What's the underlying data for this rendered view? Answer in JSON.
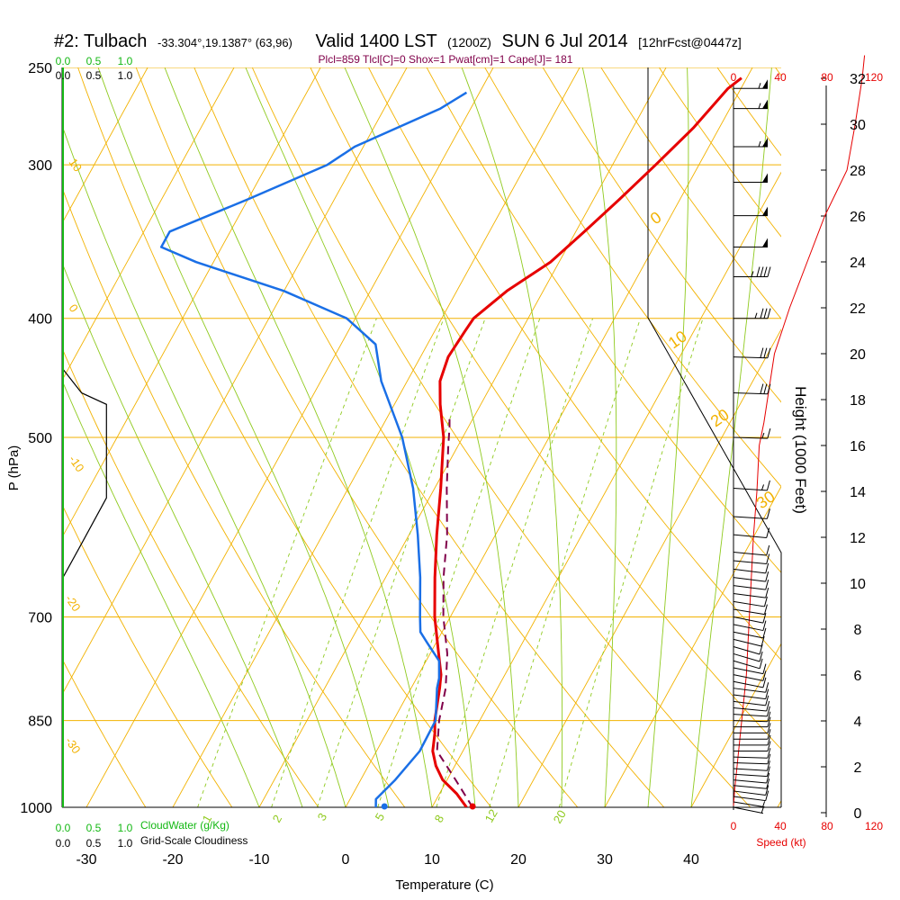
{
  "header": {
    "title_main": "#2: Tulbach",
    "title_coords": "-33.304°,19.1387° (63,96)",
    "title_valid": "Valid 1400 LST",
    "title_z": "(1200Z)",
    "title_date": "SUN 6 Jul 2014",
    "title_fcst": "[12hrFcst@0447z]",
    "subtitle": "Plcl=859 Tlcl[C]=0 Shox=1 Pwat[cm]=1 Cape[J]= 181"
  },
  "labels": {
    "ylabel": "P (hPa)",
    "xlabel": "Temperature (C)",
    "height_label": "Height (1000 Feet)",
    "speed_label": "Speed (kt)",
    "cloudwater_label": "CloudWater (g/Kg)",
    "cloudiness_label": "Grid-Scale Cloudiness"
  },
  "colors": {
    "isobar": "#f2b200",
    "dry_adiabat": "#f2b200",
    "moist_adiabat": "#8fca1e",
    "mixing_ratio": "#8fca1e",
    "temperature": "#e60000",
    "dewpoint": "#1a6fe6",
    "parcel": "#80004a",
    "cloudwater": "#14b814",
    "wind_speed": "#e60000",
    "text": "#000000"
  },
  "chart_data": {
    "type": "line",
    "title": "#2: Tulbach -33.304°,19.1387° (63,96) Valid 1400 LST (1200Z) SUN 6 Jul 2014 [12hrFcst@0447z]",
    "subtitle": "Plcl=859 Tlcl[C]=0 Shox=1 Pwat[cm]=1 Cape[J]= 181",
    "xlabel": "Temperature (C)",
    "ylabel": "P (hPa)",
    "xlim": [
      -34,
      36
    ],
    "ylim": [
      1000,
      250
    ],
    "x_ticks": [
      -30,
      -20,
      -10,
      0,
      10,
      20,
      30,
      40
    ],
    "pressure_levels": [
      1000,
      850,
      700,
      500,
      400,
      300,
      250
    ],
    "dry_adiabat_labels": [
      {
        "text": "10",
        "row": 300
      },
      {
        "text": "0",
        "row": 400
      },
      {
        "text": "-10",
        "row": 520
      },
      {
        "text": "-20",
        "row": 670
      },
      {
        "text": "-30",
        "row": 830
      }
    ],
    "mixing_ratio_labels": [
      "1",
      "2",
      "3",
      "5",
      "8",
      "12",
      "20"
    ],
    "moist_adiabat_labels": [
      "0",
      "10",
      "20",
      "30"
    ],
    "series": [
      {
        "name": "Temperature",
        "points": [
          [
            14.0,
            1000
          ],
          [
            12.0,
            975
          ],
          [
            9.5,
            950
          ],
          [
            7.8,
            925
          ],
          [
            6.5,
            900
          ],
          [
            5.6,
            870
          ],
          [
            4.8,
            850
          ],
          [
            3.3,
            800
          ],
          [
            2.6,
            780
          ],
          [
            1.0,
            750
          ],
          [
            -1.8,
            700
          ],
          [
            -4.3,
            650
          ],
          [
            -6.8,
            600
          ],
          [
            -9.3,
            550
          ],
          [
            -12.2,
            500
          ],
          [
            -14.7,
            470
          ],
          [
            -16.2,
            450
          ],
          [
            -16.8,
            430
          ],
          [
            -16.5,
            410
          ],
          [
            -16.3,
            400
          ],
          [
            -14.2,
            380
          ],
          [
            -11.0,
            360
          ],
          [
            -9.0,
            340
          ],
          [
            -7.0,
            320
          ],
          [
            -5.0,
            300
          ],
          [
            -3.0,
            280
          ],
          [
            -1.5,
            260
          ],
          [
            -0.6,
            255
          ]
        ]
      },
      {
        "name": "Dew point",
        "points": [
          [
            3.5,
            1000
          ],
          [
            3.0,
            985
          ],
          [
            4.0,
            950
          ],
          [
            5.0,
            900
          ],
          [
            4.9,
            850
          ],
          [
            3.0,
            800
          ],
          [
            2.6,
            785
          ],
          [
            1.5,
            760
          ],
          [
            -1.0,
            735
          ],
          [
            -2.5,
            720
          ],
          [
            -3.5,
            700
          ],
          [
            -6.0,
            650
          ],
          [
            -9.0,
            600
          ],
          [
            -12.5,
            550
          ],
          [
            -17.0,
            500
          ],
          [
            -23.0,
            450
          ],
          [
            -26.0,
            420
          ],
          [
            -31.0,
            400
          ],
          [
            -40.0,
            380
          ],
          [
            -52.0,
            360
          ],
          [
            -57.0,
            350
          ],
          [
            -57.0,
            340
          ],
          [
            -50.0,
            320
          ],
          [
            -43.0,
            300
          ],
          [
            -41.0,
            290
          ],
          [
            -33.5,
            270
          ],
          [
            -31.5,
            262
          ]
        ]
      },
      {
        "name": "Parcel",
        "points": [
          [
            14.7,
            1000
          ],
          [
            11.0,
            950
          ],
          [
            7.0,
            900
          ],
          [
            6.0,
            870
          ],
          [
            5.3,
            850
          ],
          [
            4.0,
            800
          ],
          [
            2.0,
            750
          ],
          [
            -0.8,
            700
          ],
          [
            -3.3,
            650
          ],
          [
            -5.6,
            600
          ],
          [
            -8.6,
            550
          ],
          [
            -11.0,
            510
          ],
          [
            -12.2,
            490
          ],
          [
            -12.9,
            480
          ]
        ]
      }
    ],
    "surface_markers": [
      {
        "name": "Surface temperature",
        "x": 14.7,
        "p": 1000
      },
      {
        "name": "Surface dew point",
        "x": 4.5,
        "p": 1000
      }
    ],
    "cloud_water": {
      "ticks": [
        "0.0",
        "0.5",
        "1.0"
      ],
      "values": [
        [
          0.0,
          1000
        ],
        [
          0.0,
          250
        ]
      ]
    },
    "cloudiness": {
      "ticks": [
        "0.0",
        "0.5",
        "1.0"
      ],
      "values": [
        [
          0.0,
          650
        ],
        [
          0.3,
          610
        ],
        [
          0.7,
          560
        ],
        [
          0.7,
          470
        ],
        [
          0.3,
          460
        ],
        [
          0.0,
          440
        ]
      ]
    },
    "wind_speed": {
      "ticks": [
        "0",
        "40",
        "80",
        "120"
      ],
      "profile": [
        [
          0,
          0.3
        ],
        [
          1,
          1.0
        ],
        [
          3,
          2.0
        ],
        [
          5,
          3.0
        ],
        [
          7,
          4.0
        ],
        [
          9,
          5.0
        ],
        [
          11,
          6.0
        ],
        [
          13,
          8.0
        ],
        [
          15,
          10.0
        ],
        [
          17,
          12.0
        ],
        [
          20,
          14.0
        ],
        [
          22,
          16.0
        ],
        [
          26,
          17.0
        ],
        [
          35,
          20.0
        ],
        [
          48,
          22.0
        ],
        [
          63,
          24.0
        ],
        [
          78,
          26.0
        ],
        [
          97,
          28.0
        ],
        [
          104,
          30.0
        ],
        [
          110,
          32.0
        ],
        [
          112,
          33.0
        ]
      ]
    },
    "height_axis": {
      "label": "Height (1000 Feet)",
      "ticks": [
        0,
        2,
        4,
        6,
        8,
        10,
        12,
        14,
        16,
        18,
        20,
        22,
        24,
        26,
        28,
        30,
        32
      ]
    },
    "wind_barbs": [
      {
        "p": 1000,
        "dir": 300,
        "spd": 5
      },
      {
        "p": 990,
        "dir": 295,
        "spd": 5
      },
      {
        "p": 980,
        "dir": 290,
        "spd": 10
      },
      {
        "p": 970,
        "dir": 290,
        "spd": 10
      },
      {
        "p": 960,
        "dir": 285,
        "spd": 10
      },
      {
        "p": 950,
        "dir": 285,
        "spd": 10
      },
      {
        "p": 940,
        "dir": 280,
        "spd": 10
      },
      {
        "p": 930,
        "dir": 280,
        "spd": 10
      },
      {
        "p": 920,
        "dir": 275,
        "spd": 10
      },
      {
        "p": 910,
        "dir": 275,
        "spd": 10
      },
      {
        "p": 900,
        "dir": 270,
        "spd": 10
      },
      {
        "p": 890,
        "dir": 270,
        "spd": 10
      },
      {
        "p": 880,
        "dir": 270,
        "spd": 10
      },
      {
        "p": 870,
        "dir": 270,
        "spd": 10
      },
      {
        "p": 860,
        "dir": 270,
        "spd": 10
      },
      {
        "p": 850,
        "dir": 275,
        "spd": 10
      },
      {
        "p": 840,
        "dir": 280,
        "spd": 10
      },
      {
        "p": 830,
        "dir": 285,
        "spd": 10
      },
      {
        "p": 820,
        "dir": 290,
        "spd": 10
      },
      {
        "p": 810,
        "dir": 290,
        "spd": 10
      },
      {
        "p": 800,
        "dir": 290,
        "spd": 10
      },
      {
        "p": 790,
        "dir": 300,
        "spd": 10
      },
      {
        "p": 780,
        "dir": 300,
        "spd": 10
      },
      {
        "p": 770,
        "dir": 300,
        "spd": 10
      },
      {
        "p": 760,
        "dir": 310,
        "spd": 10
      },
      {
        "p": 750,
        "dir": 310,
        "spd": 10
      },
      {
        "p": 740,
        "dir": 310,
        "spd": 10
      },
      {
        "p": 730,
        "dir": 305,
        "spd": 10
      },
      {
        "p": 720,
        "dir": 300,
        "spd": 10
      },
      {
        "p": 710,
        "dir": 300,
        "spd": 10
      },
      {
        "p": 700,
        "dir": 300,
        "spd": 10
      },
      {
        "p": 690,
        "dir": 295,
        "spd": 10
      },
      {
        "p": 680,
        "dir": 295,
        "spd": 10
      },
      {
        "p": 670,
        "dir": 290,
        "spd": 10
      },
      {
        "p": 660,
        "dir": 290,
        "spd": 10
      },
      {
        "p": 650,
        "dir": 290,
        "spd": 10
      },
      {
        "p": 640,
        "dir": 290,
        "spd": 10
      },
      {
        "p": 630,
        "dir": 285,
        "spd": 10
      },
      {
        "p": 620,
        "dir": 285,
        "spd": 10
      },
      {
        "p": 600,
        "dir": 285,
        "spd": 10
      },
      {
        "p": 580,
        "dir": 280,
        "spd": 10
      },
      {
        "p": 550,
        "dir": 280,
        "spd": 15
      },
      {
        "p": 500,
        "dir": 275,
        "spd": 15
      },
      {
        "p": 460,
        "dir": 275,
        "spd": 30
      },
      {
        "p": 430,
        "dir": 275,
        "spd": 30
      },
      {
        "p": 400,
        "dir": 270,
        "spd": 35
      },
      {
        "p": 370,
        "dir": 270,
        "spd": 45
      },
      {
        "p": 350,
        "dir": 270,
        "spd": 50
      },
      {
        "p": 330,
        "dir": 270,
        "spd": 50
      },
      {
        "p": 310,
        "dir": 270,
        "spd": 50
      },
      {
        "p": 290,
        "dir": 270,
        "spd": 55
      },
      {
        "p": 270,
        "dir": 270,
        "spd": 55
      },
      {
        "p": 260,
        "dir": 270,
        "spd": 55
      }
    ]
  }
}
